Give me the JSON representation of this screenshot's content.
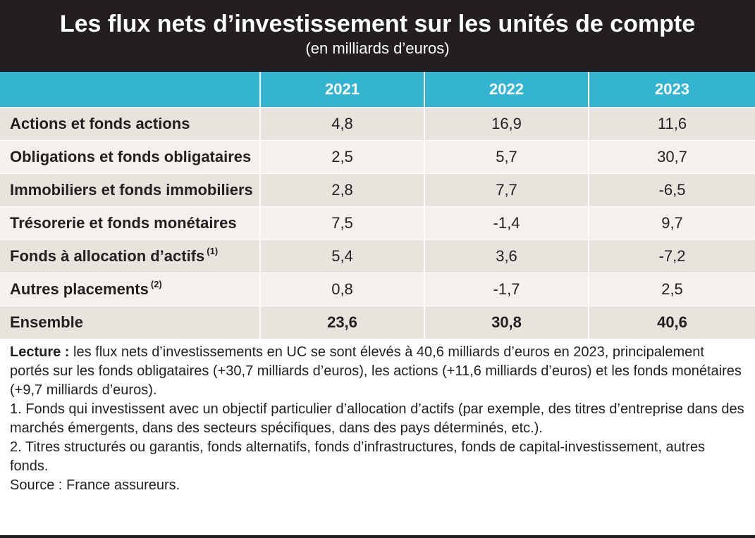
{
  "chart_data": {
    "type": "table",
    "title": "Les flux nets d’investissement sur les unités de compte",
    "subtitle": "(en milliards d’euros)",
    "columns": [
      "2021",
      "2022",
      "2023"
    ],
    "rows": [
      {
        "label": "Actions et fonds actions",
        "note": "",
        "values": [
          "4,8",
          "16,9",
          "11,6"
        ]
      },
      {
        "label": "Obligations et fonds obligataires",
        "note": "",
        "values": [
          "2,5",
          "5,7",
          "30,7"
        ]
      },
      {
        "label": "Immobiliers et fonds immobiliers",
        "note": "",
        "values": [
          "2,8",
          "7,7",
          "-6,5"
        ]
      },
      {
        "label": "Trésorerie et fonds monétaires",
        "note": "",
        "values": [
          "7,5",
          "-1,4",
          "9,7"
        ]
      },
      {
        "label": "Fonds à allocation d’actifs",
        "note": "(1)",
        "values": [
          "5,4",
          "3,6",
          "-7,2"
        ]
      },
      {
        "label": "Autres placements",
        "note": "(2)",
        "values": [
          "0,8",
          "-1,7",
          "2,5"
        ]
      }
    ],
    "total": {
      "label": "Ensemble",
      "values": [
        "23,6",
        "30,8",
        "40,6"
      ]
    }
  },
  "notes": {
    "lecture_label": "Lecture :",
    "lecture_text": " les flux nets d’investissements en UC se sont élevés à 40,6 milliards d’euros en 2023, principalement portés sur les fonds obligataires (+30,7 milliards d’euros), les actions (+11,6 milliards d’euros) et les fonds monétaires (+9,7 milliards d’euros).",
    "note1": "1. Fonds qui investissent avec un objectif particulier d’allocation d’actifs (par exemple, des titres d’entreprise dans des marchés émergents, dans des secteurs spécifiques, dans des pays déterminés, etc.).",
    "note2": "2. Titres structurés ou garantis, fonds alternatifs, fonds d’infrastructures, fonds de capital-investissement, autres fonds.",
    "source": "Source : France assureurs."
  },
  "colors": {
    "header_bg": "#231f20",
    "column_header_bg": "#33b5d2",
    "row_bg_a": "#e8e3dd",
    "row_bg_b": "#f4f1ed",
    "text": "#231f20"
  }
}
